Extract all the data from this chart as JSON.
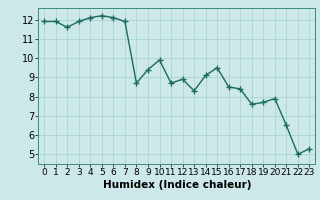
{
  "x": [
    0,
    1,
    2,
    3,
    4,
    5,
    6,
    7,
    8,
    9,
    10,
    11,
    12,
    13,
    14,
    15,
    16,
    17,
    18,
    19,
    20,
    21,
    22,
    23
  ],
  "y": [
    11.9,
    11.9,
    11.6,
    11.9,
    12.1,
    12.2,
    12.1,
    11.9,
    8.7,
    9.4,
    9.9,
    8.7,
    8.9,
    8.3,
    9.1,
    9.5,
    8.5,
    8.4,
    7.6,
    7.7,
    7.9,
    6.5,
    5.0,
    5.3
  ],
  "line_color": "#1a6b60",
  "marker": "+",
  "marker_size": 4,
  "bg_color": "#cce8e8",
  "grid_color": "#aad4d4",
  "xlabel": "Humidex (Indice chaleur)",
  "ylim": [
    4.5,
    12.6
  ],
  "xlim": [
    -0.5,
    23.5
  ],
  "yticks": [
    5,
    6,
    7,
    8,
    9,
    10,
    11,
    12
  ],
  "xticks": [
    0,
    1,
    2,
    3,
    4,
    5,
    6,
    7,
    8,
    9,
    10,
    11,
    12,
    13,
    14,
    15,
    16,
    17,
    18,
    19,
    20,
    21,
    22,
    23
  ],
  "xlabel_fontsize": 7.5,
  "tick_fontsize": 7,
  "line_width": 1.0
}
